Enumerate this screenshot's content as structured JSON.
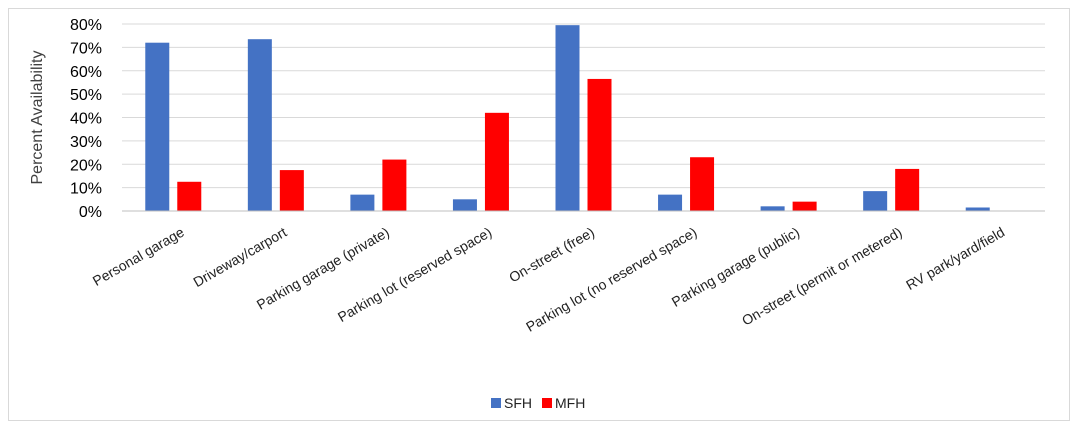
{
  "chart_data": {
    "type": "bar",
    "title": "",
    "xlabel": "",
    "ylabel": "Percent Availability",
    "ylim": [
      0,
      80
    ],
    "yticks": [
      "0%",
      "10%",
      "20%",
      "30%",
      "40%",
      "50%",
      "60%",
      "70%",
      "80%"
    ],
    "grid": true,
    "legend_position": "bottom",
    "categories": [
      "Personal garage",
      "Driveway/carport",
      "Parking garage (private)",
      "Parking lot (reserved space)",
      "On-street (free)",
      "Parking lot (no reserved space)",
      "Parking garage (public)",
      "On-street (permit or metered)",
      "RV park/yard/field"
    ],
    "series": [
      {
        "name": "SFH",
        "color": "#4472c4",
        "values": [
          72,
          73.5,
          7,
          5,
          79.5,
          7,
          2,
          8.5,
          1.5
        ]
      },
      {
        "name": "MFH",
        "color": "#ff0000",
        "values": [
          12.5,
          17.5,
          22,
          42,
          56.5,
          23,
          4,
          18,
          null
        ]
      }
    ]
  }
}
